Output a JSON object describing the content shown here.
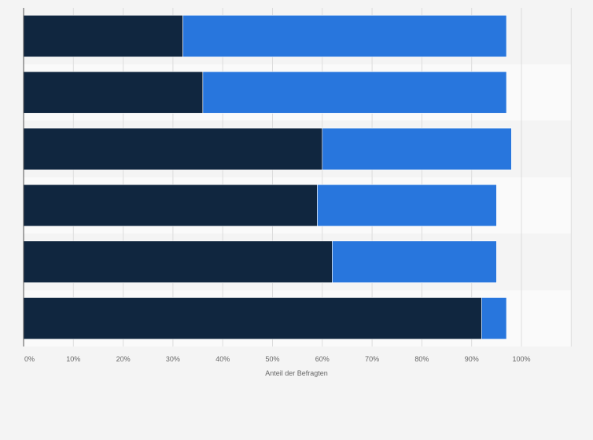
{
  "chart_data": {
    "type": "bar",
    "orientation": "horizontal",
    "stacked": true,
    "title": "",
    "xlabel": "Anteil der Befragten",
    "ylabel": "",
    "xlim": [
      0,
      110
    ],
    "x_ticks": [
      "0%",
      "10%",
      "20%",
      "30%",
      "40%",
      "50%",
      "60%",
      "70%",
      "80%",
      "90%",
      "100%"
    ],
    "grid": true,
    "legend": "none",
    "categories": [
      "",
      "",
      "",
      "",
      "",
      ""
    ],
    "series": [
      {
        "name": "",
        "color": "#10263f",
        "values": [
          32,
          36,
          60,
          59,
          62,
          92
        ]
      },
      {
        "name": "",
        "color": "#2876dd",
        "values": [
          65,
          61,
          38,
          36,
          33,
          5
        ]
      }
    ]
  }
}
